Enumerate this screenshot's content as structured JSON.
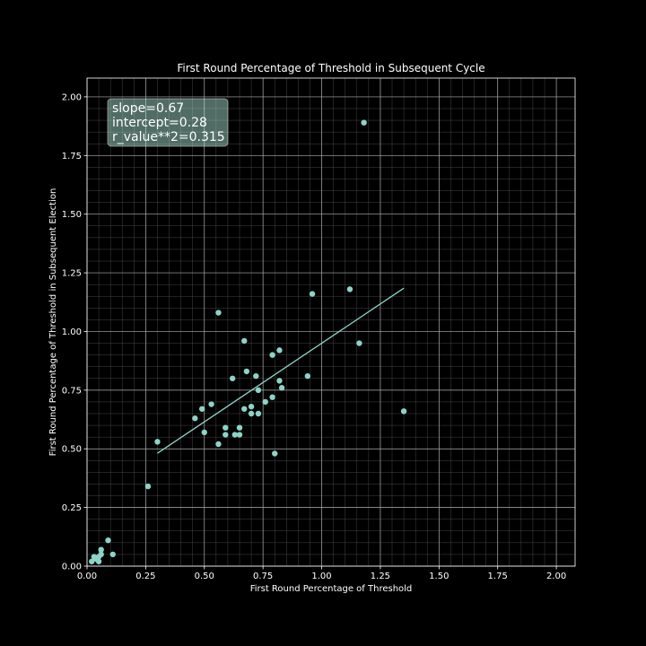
{
  "chart_data": {
    "type": "scatter",
    "title": "First Round Percentage of Threshold in Subsequent Cycle",
    "xlabel": "First Round Percentage of Threshold",
    "ylabel": "First Round Percentage of Threshold in Subsequent Election",
    "xlim": [
      0,
      2.08
    ],
    "ylim": [
      0,
      2.08
    ],
    "x_ticks": [
      "0.00",
      "0.25",
      "0.50",
      "0.75",
      "1.00",
      "1.25",
      "1.50",
      "1.75",
      "2.00"
    ],
    "y_ticks": [
      "0.00",
      "0.25",
      "0.50",
      "0.75",
      "1.00",
      "1.25",
      "1.50",
      "1.75",
      "2.00"
    ],
    "grid": true,
    "minor_grid": true,
    "background": "#000000",
    "point_color": "#8dd3c7",
    "line_color": "#8dd3c7",
    "annotation": {
      "lines": [
        "slope=0.67",
        "intercept=0.28",
        "r_value**2=0.315"
      ],
      "placement": "top-left"
    },
    "regression": {
      "slope": 0.67,
      "intercept": 0.28,
      "x_range": [
        0.3,
        1.35
      ]
    },
    "points": [
      [
        0.02,
        0.02
      ],
      [
        0.03,
        0.04
      ],
      [
        0.04,
        0.03
      ],
      [
        0.05,
        0.02
      ],
      [
        0.05,
        0.04
      ],
      [
        0.06,
        0.05
      ],
      [
        0.06,
        0.07
      ],
      [
        0.09,
        0.11
      ],
      [
        0.11,
        0.05
      ],
      [
        0.26,
        0.34
      ],
      [
        0.3,
        0.53
      ],
      [
        0.46,
        0.63
      ],
      [
        0.49,
        0.67
      ],
      [
        0.5,
        0.57
      ],
      [
        0.53,
        0.69
      ],
      [
        0.56,
        0.52
      ],
      [
        0.56,
        1.08
      ],
      [
        0.59,
        0.59
      ],
      [
        0.59,
        0.56
      ],
      [
        0.62,
        0.8
      ],
      [
        0.63,
        0.56
      ],
      [
        0.65,
        0.59
      ],
      [
        0.65,
        0.56
      ],
      [
        0.67,
        0.67
      ],
      [
        0.67,
        0.96
      ],
      [
        0.68,
        0.83
      ],
      [
        0.7,
        0.68
      ],
      [
        0.7,
        0.65
      ],
      [
        0.72,
        0.81
      ],
      [
        0.73,
        0.75
      ],
      [
        0.73,
        0.65
      ],
      [
        0.76,
        0.7
      ],
      [
        0.79,
        0.72
      ],
      [
        0.79,
        0.9
      ],
      [
        0.8,
        0.48
      ],
      [
        0.82,
        0.79
      ],
      [
        0.82,
        0.92
      ],
      [
        0.83,
        0.76
      ],
      [
        0.94,
        0.81
      ],
      [
        0.96,
        1.16
      ],
      [
        1.12,
        1.18
      ],
      [
        1.16,
        0.95
      ],
      [
        1.18,
        1.89
      ],
      [
        1.35,
        0.66
      ]
    ]
  }
}
